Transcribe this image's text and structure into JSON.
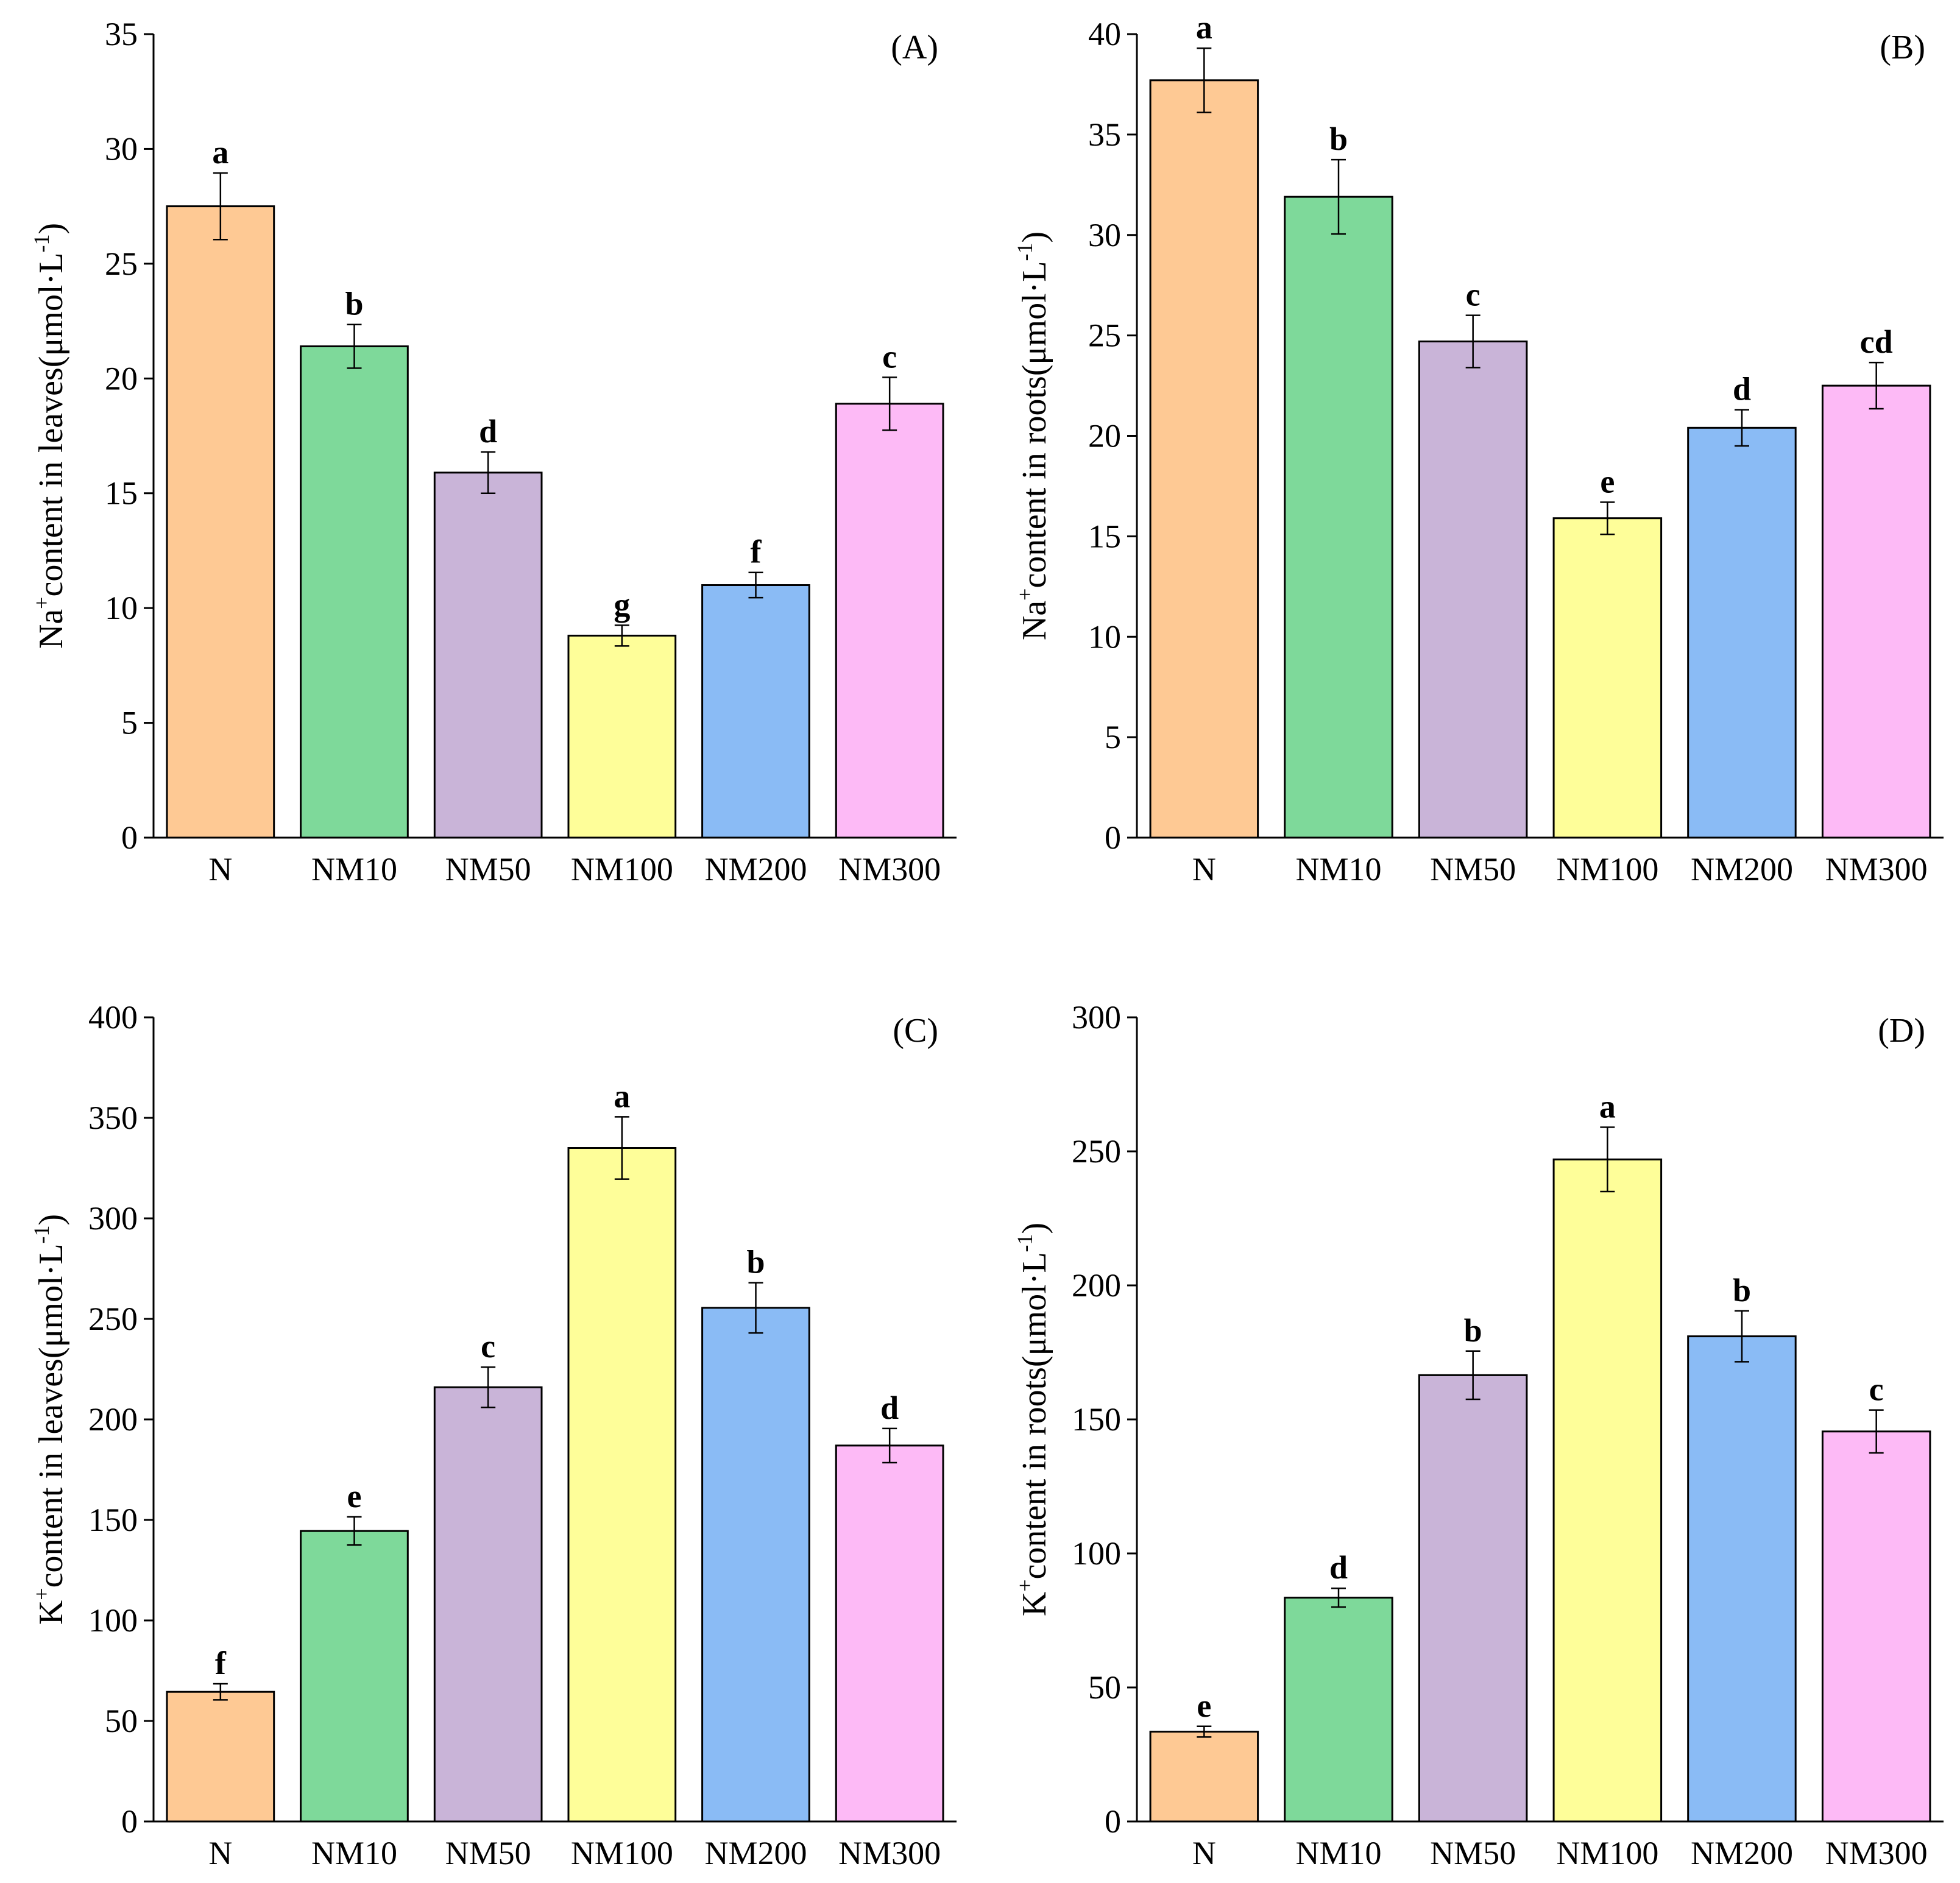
{
  "colors": [
    "#FEC994",
    "#7ED99A",
    "#C9B4D8",
    "#FEFE99",
    "#8ABBF5",
    "#FDBAF6"
  ],
  "chart_data": [
    {
      "type": "bar",
      "panel_label": "(A)",
      "ylabel_pre": "Na",
      "ylabel_sup": "+",
      "ylabel_main": "content in leaves(μmol·L",
      "ylabel_exp": "-1",
      "ylabel_close": ")",
      "categories": [
        "N",
        "NM10",
        "NM50",
        "NM100",
        "NM200",
        "NM300"
      ],
      "values": [
        27.5,
        21.4,
        15.9,
        8.8,
        11.0,
        18.9
      ],
      "errors": [
        1.45,
        0.95,
        0.9,
        0.45,
        0.55,
        1.15
      ],
      "letters": [
        "a",
        "b",
        "d",
        "g",
        "f",
        "c"
      ],
      "ylim": [
        0,
        35
      ],
      "ticks": [
        0,
        5,
        10,
        15,
        20,
        25,
        30,
        35
      ]
    },
    {
      "type": "bar",
      "panel_label": "(B)",
      "ylabel_pre": "Na",
      "ylabel_sup": "+",
      "ylabel_main": "content in roots(μmol·L",
      "ylabel_exp": "-1",
      "ylabel_close": ")",
      "categories": [
        "N",
        "NM10",
        "NM50",
        "NM100",
        "NM200",
        "NM300"
      ],
      "values": [
        37.7,
        31.9,
        24.7,
        15.9,
        20.4,
        22.5
      ],
      "errors": [
        1.6,
        1.85,
        1.3,
        0.8,
        0.9,
        1.15
      ],
      "letters": [
        "a",
        "b",
        "c",
        "e",
        "d",
        "cd"
      ],
      "ylim": [
        0,
        40
      ],
      "ticks": [
        0,
        5,
        10,
        15,
        20,
        25,
        30,
        35,
        40
      ]
    },
    {
      "type": "bar",
      "panel_label": "(C)",
      "ylabel_pre": "K",
      "ylabel_sup": "+",
      "ylabel_main": "content in leaves(μmol·L",
      "ylabel_exp": "-1",
      "ylabel_close": ")",
      "categories": [
        "N",
        "NM10",
        "NM50",
        "NM100",
        "NM200",
        "NM300"
      ],
      "values": [
        64.5,
        144.5,
        216,
        335,
        255.5,
        187
      ],
      "errors": [
        4,
        7,
        10,
        15.5,
        12.5,
        8.5
      ],
      "letters": [
        "f",
        "e",
        "c",
        "a",
        "b",
        "d"
      ],
      "ylim": [
        0,
        400
      ],
      "ticks": [
        0,
        50,
        100,
        150,
        200,
        250,
        300,
        350,
        400
      ]
    },
    {
      "type": "bar",
      "panel_label": "(D)",
      "ylabel_pre": "K",
      "ylabel_sup": "+",
      "ylabel_main": "content in roots(μmol·L",
      "ylabel_exp": "-1",
      "ylabel_close": ")",
      "categories": [
        "N",
        "NM10",
        "NM50",
        "NM100",
        "NM200",
        "NM300"
      ],
      "values": [
        33.5,
        83.5,
        166.5,
        247,
        181,
        145.5
      ],
      "errors": [
        2,
        3.5,
        9,
        12,
        9.5,
        8
      ],
      "letters": [
        "e",
        "d",
        "b",
        "a",
        "b",
        "c"
      ],
      "ylim": [
        0,
        300
      ],
      "ticks": [
        0,
        50,
        100,
        150,
        200,
        250,
        300
      ]
    }
  ]
}
